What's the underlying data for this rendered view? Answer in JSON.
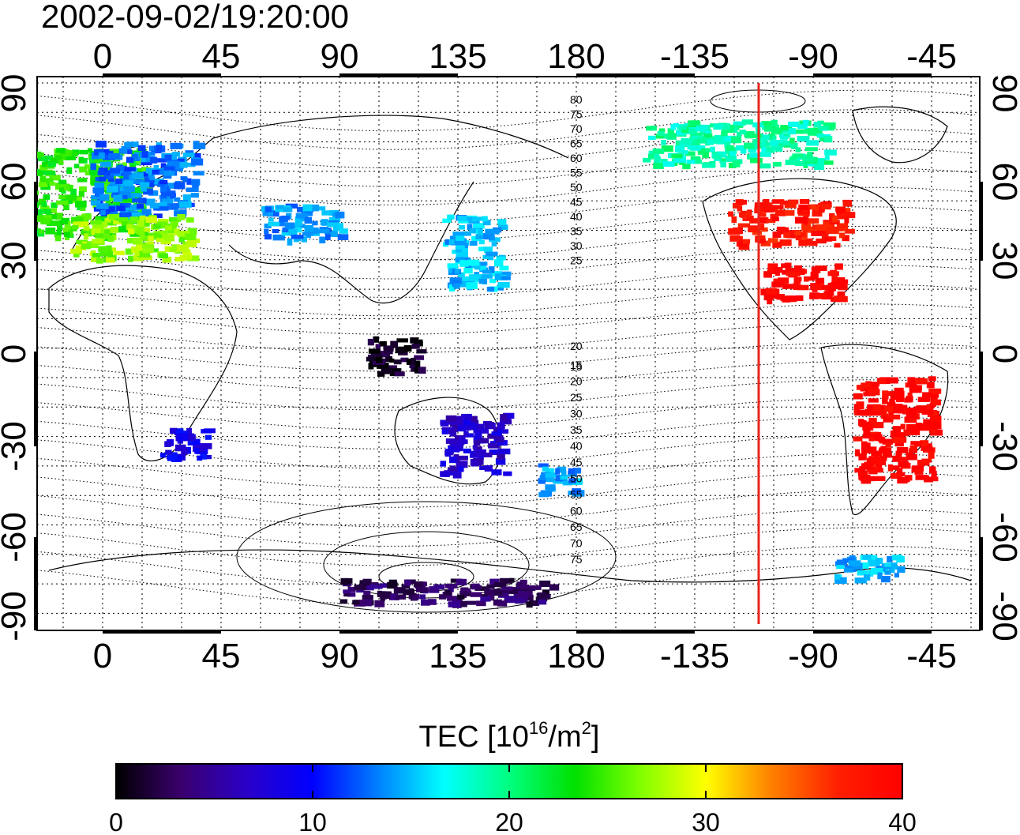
{
  "title": "2002-09-02/19:20:00",
  "map": {
    "top_lon_labels": [
      "0",
      "45",
      "90",
      "135",
      "180",
      "-135",
      "-90",
      "-45"
    ],
    "bottom_lon_labels": [
      "0",
      "45",
      "90",
      "135",
      "180",
      "-135",
      "-90",
      "-45"
    ],
    "left_lat_labels": [
      "90",
      "60",
      "30",
      "0",
      "-30",
      "-60",
      "-90"
    ],
    "right_lat_labels": [
      "90",
      "60",
      "30",
      "0",
      "-30",
      "-60",
      "-90"
    ],
    "north_contour_labels": [
      "80",
      "75",
      "70",
      "65",
      "60",
      "55",
      "50",
      "45",
      "40",
      "35",
      "30",
      "25",
      "20",
      "15"
    ],
    "south_contour_labels": [
      "15",
      "20",
      "25",
      "30",
      "35",
      "40",
      "45",
      "50",
      "55",
      "60",
      "65",
      "70",
      "75"
    ],
    "marker_line_color": "#e8251c"
  },
  "colorbar": {
    "label_prefix": "TEC  [10",
    "label_exp1": "16",
    "label_mid": "/m",
    "label_exp2": "2",
    "label_suffix": "]",
    "ticks": [
      "0",
      "10",
      "20",
      "30",
      "40"
    ],
    "range": [
      0,
      40
    ],
    "colors": [
      "#000000",
      "#3a006e",
      "#2a00c8",
      "#0000ff",
      "#0080ff",
      "#00ffff",
      "#00ff80",
      "#00e000",
      "#80ff00",
      "#ffff00",
      "#ff8000",
      "#ff2000",
      "#ff0000"
    ]
  },
  "patches": [
    {
      "lon": -15,
      "lat": 55,
      "w": 60,
      "h": 30,
      "tec": 24
    },
    {
      "lon": 15,
      "lat": 60,
      "w": 40,
      "h": 25,
      "tec": 13
    },
    {
      "lon": 10,
      "lat": 40,
      "w": 45,
      "h": 15,
      "tec": 27
    },
    {
      "lon": 75,
      "lat": 45,
      "w": 30,
      "h": 12,
      "tec": 14
    },
    {
      "lon": 140,
      "lat": 35,
      "w": 22,
      "h": 25,
      "tec": 15
    },
    {
      "lon": 110,
      "lat": 0,
      "w": 20,
      "h": 12,
      "tec": 1
    },
    {
      "lon": 30,
      "lat": -30,
      "w": 18,
      "h": 10,
      "tec": 9
    },
    {
      "lon": 140,
      "lat": -30,
      "w": 25,
      "h": 20,
      "tec": 7
    },
    {
      "lon": 172,
      "lat": -42,
      "w": 15,
      "h": 10,
      "tec": 14
    },
    {
      "lon": -100,
      "lat": 45,
      "w": 45,
      "h": 15,
      "tec": 38
    },
    {
      "lon": -95,
      "lat": 25,
      "w": 30,
      "h": 12,
      "tec": 40
    },
    {
      "lon": -60,
      "lat": -25,
      "w": 30,
      "h": 35,
      "tec": 40
    },
    {
      "lon": -120,
      "lat": 72,
      "w": 70,
      "h": 15,
      "tec": 19
    },
    {
      "lon": 130,
      "lat": -80,
      "w": 80,
      "h": 8,
      "tec": 3
    },
    {
      "lon": -70,
      "lat": -72,
      "w": 25,
      "h": 8,
      "tec": 15
    }
  ]
}
